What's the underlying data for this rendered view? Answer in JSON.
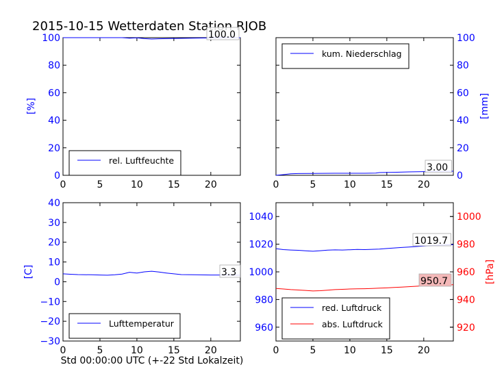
{
  "title": "2015-10-15 Wetterdaten Station RJOB",
  "xlabel": "Std 00:00:00 UTC (+-22 Std Lokalzeit)",
  "colors": {
    "blue": "#0000ff",
    "red": "#ff0000",
    "box_pink": "#f4b8b8"
  },
  "chart_data": [
    {
      "type": "line",
      "ylabel": "[%]",
      "xlim": [
        0,
        24
      ],
      "ylim": [
        0,
        100
      ],
      "xticks": [
        "0",
        "5",
        "10",
        "15",
        "20"
      ],
      "yticks": [
        "0",
        "20",
        "40",
        "60",
        "80",
        "100"
      ],
      "series": [
        {
          "name": "rel. Luftfeuchte",
          "color": "#0000ff",
          "x": [
            0,
            2,
            4,
            6,
            8,
            9,
            10,
            11,
            12,
            13,
            14,
            16,
            18,
            20,
            22,
            24
          ],
          "y": [
            100,
            100,
            100,
            100,
            100,
            99.6,
            99.9,
            99.3,
            99.0,
            99.2,
            99.3,
            99.5,
            99.7,
            99.8,
            100,
            100
          ]
        }
      ],
      "legend": "lower-left",
      "annotation": "100.0"
    },
    {
      "type": "line",
      "ylabel": "[mm]",
      "xlim": [
        0,
        24
      ],
      "ylim": [
        0,
        100
      ],
      "xticks": [
        "0",
        "5",
        "10",
        "15",
        "20"
      ],
      "yticks": [
        "0",
        "20",
        "40",
        "60",
        "80",
        "100"
      ],
      "series": [
        {
          "name": "kum. Niederschlag",
          "color": "#0000ff",
          "x": [
            0,
            1,
            2,
            3,
            5,
            8,
            10,
            12,
            13.5,
            14,
            16,
            18,
            20,
            22,
            24
          ],
          "y": [
            0,
            0.5,
            1.1,
            1.3,
            1.4,
            1.5,
            1.5,
            1.5,
            1.6,
            2.0,
            2.2,
            2.5,
            2.7,
            2.9,
            3.0
          ]
        }
      ],
      "legend": "upper-left",
      "annotation": "3.00"
    },
    {
      "type": "line",
      "ylabel": "[C]",
      "xlim": [
        0,
        24
      ],
      "ylim": [
        -30,
        40
      ],
      "xticks": [
        "0",
        "5",
        "10",
        "15",
        "20"
      ],
      "yticks": [
        "−30",
        "−20",
        "−10",
        "0",
        "10",
        "20",
        "30",
        "40"
      ],
      "series": [
        {
          "name": "Lufttemperatur",
          "color": "#0000ff",
          "x": [
            0,
            1,
            2,
            4,
            5,
            6,
            7,
            8,
            9,
            10,
            11,
            12,
            13,
            14,
            15,
            16,
            18,
            20,
            22,
            24
          ],
          "y": [
            4.0,
            3.8,
            3.6,
            3.5,
            3.4,
            3.3,
            3.5,
            3.9,
            4.8,
            4.4,
            5.0,
            5.3,
            4.9,
            4.4,
            4.0,
            3.6,
            3.5,
            3.4,
            3.4,
            3.3
          ]
        }
      ],
      "legend": "lower-left",
      "annotation": "3.3"
    },
    {
      "type": "line",
      "ylabel": "[hPa]",
      "xlim": [
        0,
        24
      ],
      "ylim": [
        950,
        1050
      ],
      "ylim_right": [
        910,
        1010
      ],
      "xticks": [
        "0",
        "5",
        "10",
        "15",
        "20"
      ],
      "yticks": [
        "960",
        "980",
        "1000",
        "1020",
        "1040"
      ],
      "yticks_right": [
        "920",
        "940",
        "960",
        "980",
        "1000"
      ],
      "series": [
        {
          "name": "red. Luftdruck",
          "color": "#0000ff",
          "x": [
            0,
            1,
            2,
            3,
            4,
            5,
            6,
            7,
            8,
            9,
            10,
            11,
            12,
            13,
            14,
            15,
            16,
            17,
            18,
            19,
            20,
            21,
            22,
            23,
            24
          ],
          "y": [
            1016.8,
            1016.1,
            1015.8,
            1015.6,
            1015.2,
            1014.9,
            1015.3,
            1015.7,
            1015.9,
            1015.8,
            1016.0,
            1016.2,
            1016.1,
            1016.3,
            1016.5,
            1016.9,
            1017.3,
            1017.6,
            1017.9,
            1018.3,
            1018.7,
            1019.0,
            1019.3,
            1019.5,
            1019.7
          ]
        },
        {
          "name": "abs. Luftdruck",
          "color": "#ff0000",
          "x": [
            0,
            1,
            2,
            3,
            4,
            5,
            6,
            7,
            8,
            9,
            10,
            11,
            12,
            13,
            14,
            15,
            16,
            17,
            18,
            19,
            20,
            21,
            22,
            23,
            24
          ],
          "y": [
            948.0,
            947.6,
            947.2,
            946.9,
            946.6,
            946.2,
            946.4,
            946.8,
            947.2,
            947.4,
            947.6,
            947.7,
            947.8,
            948.0,
            948.2,
            948.4,
            948.7,
            949.0,
            949.3,
            949.6,
            949.9,
            950.2,
            950.4,
            950.6,
            950.7
          ]
        }
      ],
      "legend": "lower-left",
      "annotations": [
        "1019.7",
        "950.7"
      ]
    }
  ]
}
